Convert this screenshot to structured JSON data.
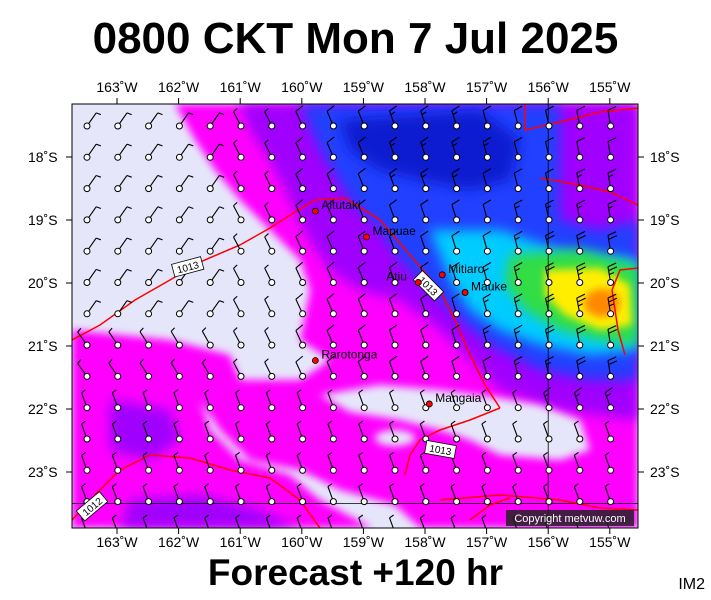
{
  "title": "0800 CKT Mon 7 Jul 2025",
  "footer": "Forecast +120 hr",
  "panel_id": "IM2",
  "copyright": "Copyright metvuw.com",
  "lon_labels": [
    "163˚W",
    "162˚W",
    "161˚W",
    "160˚W",
    "159˚W",
    "158˚W",
    "157˚W",
    "156˚W",
    "155˚W"
  ],
  "lat_labels": [
    "18˚S",
    "19˚S",
    "20˚S",
    "21˚S",
    "22˚S",
    "23˚S"
  ],
  "places": [
    {
      "name": "Aitutaki",
      "lon": -159.78,
      "lat": -18.86
    },
    {
      "name": "Manuae",
      "lon": -158.95,
      "lat": -19.27
    },
    {
      "name": "Atiu",
      "lon": -158.11,
      "lat": -19.99
    },
    {
      "name": "Mitiaro",
      "lon": -157.72,
      "lat": -19.87
    },
    {
      "name": "Mauke",
      "lon": -157.35,
      "lat": -20.15
    },
    {
      "name": "Rarotonga",
      "lon": -159.78,
      "lat": -21.23
    },
    {
      "name": "Mangaia",
      "lon": -157.93,
      "lat": -21.92
    }
  ],
  "isobars": [
    {
      "label": "1013",
      "label_lon": -161.85,
      "label_lat": -19.75
    },
    {
      "label": "1013",
      "label_lon": -157.95,
      "label_lat": -20.05
    },
    {
      "label": "1013",
      "label_lon": -157.75,
      "label_lat": -22.65
    },
    {
      "label": "1012",
      "label_lon": -163.4,
      "label_lat": -23.55
    }
  ],
  "colors": {
    "background_low": "#e6e6fa",
    "magenta": "#ff00ff",
    "purple": "#9900ff",
    "blue": "#1e3cff",
    "cyan": "#00ddff",
    "green": "#33dd33",
    "yellow": "#ffee00",
    "orange": "#ff8800",
    "isobar": "#ff0000"
  }
}
